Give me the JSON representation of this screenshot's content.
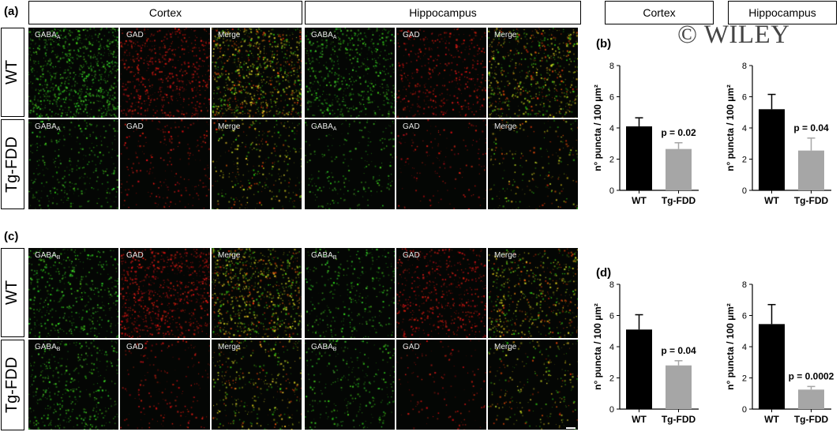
{
  "figure": {
    "panel_letters": {
      "a": "(a)",
      "b": "(b)",
      "c": "(c)",
      "d": "(d)"
    },
    "region_headers": [
      "Cortex",
      "Hippocampus"
    ],
    "right_headers": [
      "Cortex",
      "Hippocampus"
    ],
    "row_labels": [
      "WT",
      "Tg-FDD",
      "WT",
      "Tg-FDD"
    ],
    "watermark": "© WILEY",
    "tile_labels": {
      "gabaa": "GABA",
      "gabaa_sub": "A",
      "gabab": "GABA",
      "gabab_sub": "B",
      "gad": "GAD",
      "merge": "Merge"
    }
  },
  "colors": {
    "bar_wt": "#000000",
    "bar_tg": "#a6a6a6",
    "green": "#33cc22",
    "red": "#dd1a10",
    "yellow": "#d8d020"
  },
  "chart_data": [
    {
      "type": "bar",
      "panel": "b",
      "region": "Cortex",
      "categories": [
        "WT",
        "Tg-FDD"
      ],
      "values": [
        4.1,
        2.65
      ],
      "errors": [
        0.55,
        0.4
      ],
      "ylabel": "n° puncta / 100 µm²",
      "ylim": [
        0,
        8
      ],
      "yticks": [
        0,
        2,
        4,
        6,
        8
      ],
      "annotation": "p = 0.02"
    },
    {
      "type": "bar",
      "panel": "b",
      "region": "Hippocampus",
      "categories": [
        "WT",
        "Tg-FDD"
      ],
      "values": [
        5.2,
        2.55
      ],
      "errors": [
        0.95,
        0.8
      ],
      "ylabel": "n° puncta / 100 µm²",
      "ylim": [
        0,
        8
      ],
      "yticks": [
        0,
        2,
        4,
        6,
        8
      ],
      "annotation": "p = 0.04"
    },
    {
      "type": "bar",
      "panel": "d",
      "region": "Cortex",
      "categories": [
        "WT",
        "Tg-FDD"
      ],
      "values": [
        5.1,
        2.8
      ],
      "errors": [
        0.95,
        0.3
      ],
      "ylabel": "n° puncta / 100 µm²",
      "ylim": [
        0,
        8
      ],
      "yticks": [
        0,
        2,
        4,
        6,
        8
      ],
      "annotation": "p = 0.04"
    },
    {
      "type": "bar",
      "panel": "d",
      "region": "Hippocampus",
      "categories": [
        "WT",
        "Tg-FDD"
      ],
      "values": [
        5.45,
        1.25
      ],
      "errors": [
        1.25,
        0.2
      ],
      "ylabel": "n° puncta / 100 µm²",
      "ylim": [
        0,
        8
      ],
      "yticks": [
        0,
        2,
        4,
        6,
        8
      ],
      "annotation": "p = 0.0002"
    }
  ]
}
